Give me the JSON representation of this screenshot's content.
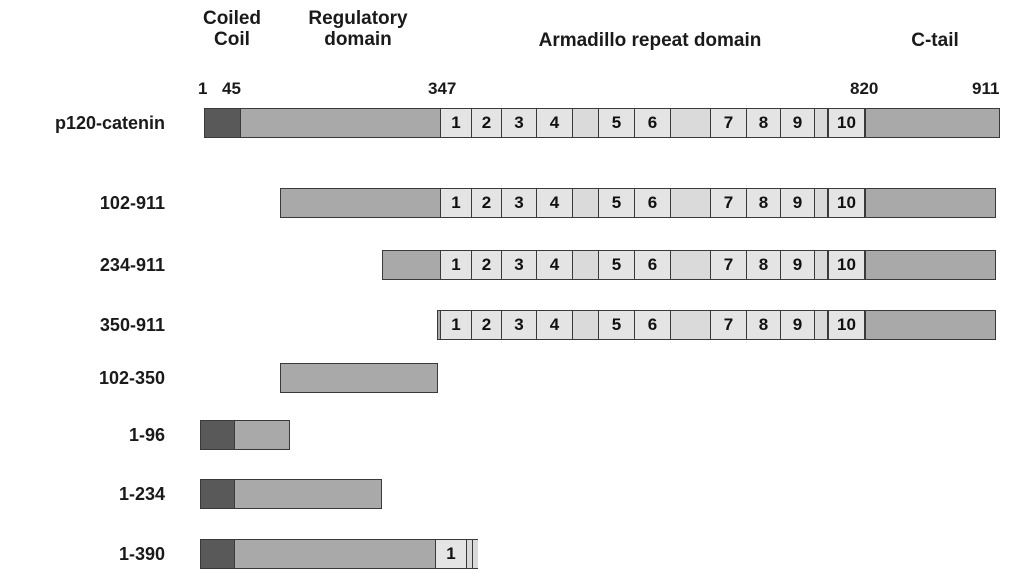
{
  "headers": [
    {
      "id": "coiled-coil",
      "text": "Coiled\nCoil"
    },
    {
      "id": "regulatory",
      "text": "Regulatory\ndomain"
    },
    {
      "id": "armadillo",
      "text": "Armadillo repeat domain"
    },
    {
      "id": "ctail",
      "text": "C-tail"
    }
  ],
  "positions": [
    "1",
    "45",
    "347",
    "820",
    "911"
  ],
  "repeat_labels": [
    "1",
    "2",
    "3",
    "4",
    "5",
    "6",
    "7",
    "8",
    "9",
    "10"
  ],
  "constructs": [
    {
      "label": "p120-catenin",
      "start": 1,
      "end": 911
    },
    {
      "label": "102-911",
      "start": 102,
      "end": 911
    },
    {
      "label": "234-911",
      "start": 234,
      "end": 911
    },
    {
      "label": "350-911",
      "start": 350,
      "end": 911
    },
    {
      "label": "102-350",
      "start": 102,
      "end": 350
    },
    {
      "label": "1-96",
      "start": 1,
      "end": 96
    },
    {
      "label": "1-234",
      "start": 1,
      "end": 234
    },
    {
      "label": "1-390",
      "start": 1,
      "end": 390
    }
  ],
  "colors": {
    "coiled_coil": "#595959",
    "regulatory": "#a9a9a9",
    "armadillo": "#dadada",
    "ctail": "#a9a9a9",
    "outline": "#3a3a3a"
  }
}
